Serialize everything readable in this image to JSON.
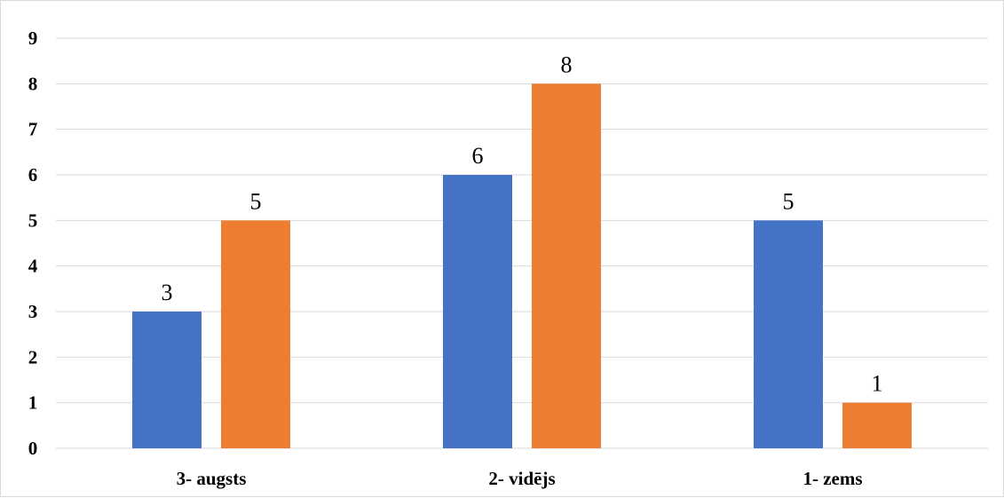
{
  "chart_data": {
    "type": "bar",
    "categories": [
      "3- augsts",
      "2- vidējs",
      "1- zems"
    ],
    "series": [
      {
        "values": [
          3,
          6,
          5
        ],
        "color": "#4472C4"
      },
      {
        "values": [
          5,
          8,
          1
        ],
        "color": "#ED7D31"
      }
    ],
    "yticks": [
      "0",
      "1",
      "2",
      "3",
      "4",
      "5",
      "6",
      "7",
      "8",
      "9"
    ],
    "ylim": [
      0,
      9
    ],
    "grid": true,
    "data_labels": true,
    "legend": "none",
    "title": "",
    "xlabel": "",
    "ylabel": ""
  }
}
